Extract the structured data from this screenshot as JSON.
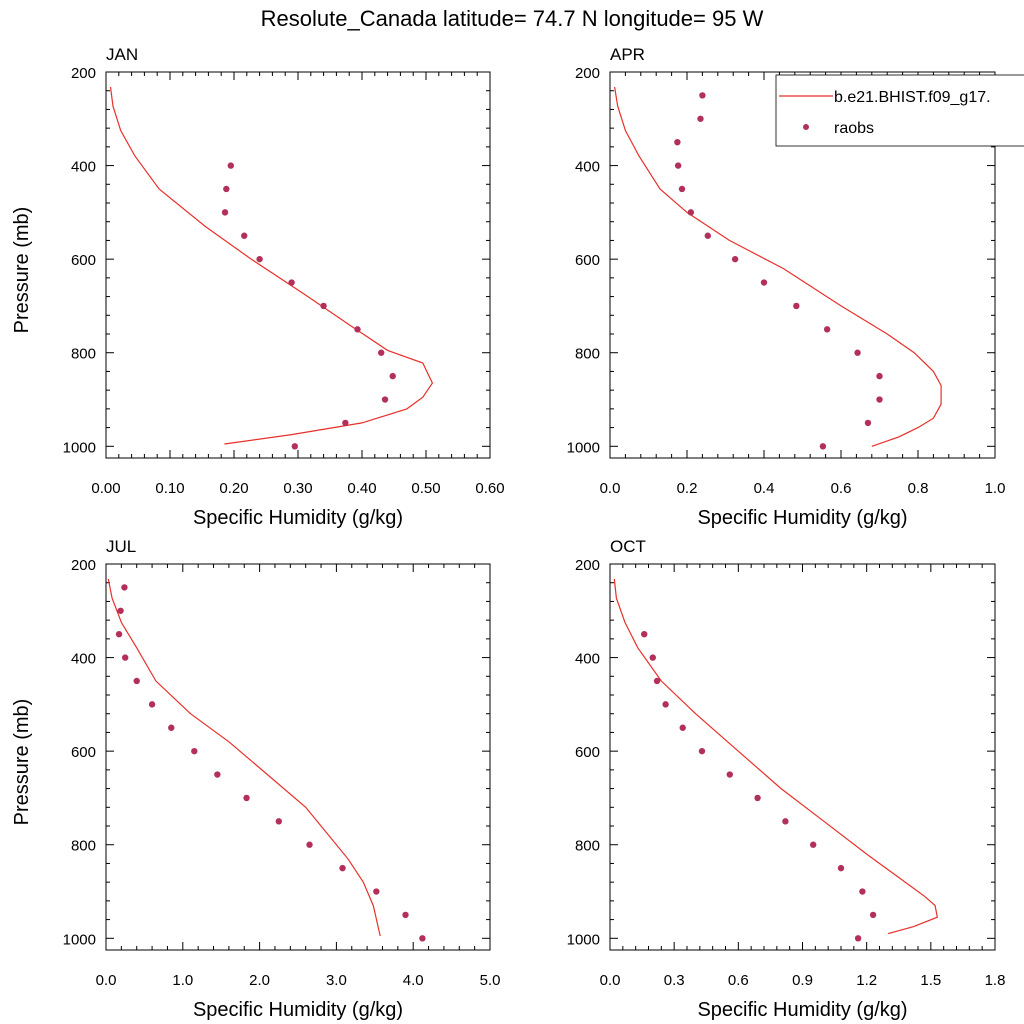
{
  "figure": {
    "title": "Resolute_Canada  latitude= 74.7 N longitude= 95 W"
  },
  "legend": {
    "entries": [
      {
        "label": "b.e21.BHIST.f09_g17.",
        "kind": "line",
        "color": "#e8302a"
      },
      {
        "label": "raobs",
        "kind": "marker",
        "color": "#b2305a"
      }
    ]
  },
  "chart_data": [
    {
      "type": "line+scatter",
      "title": "JAN",
      "xlabel": "Specific Humidity (g/kg)",
      "ylabel": "Pressure (mb)",
      "xlim": [
        0,
        0.6
      ],
      "xticks": [
        0,
        0.1,
        0.2,
        0.3,
        0.4,
        0.5,
        0.6
      ],
      "xtick_labels": [
        "0.00",
        "0.10",
        "0.20",
        "0.30",
        "0.40",
        "0.50",
        "0.60"
      ],
      "ylim": [
        200,
        1025
      ],
      "yticks": [
        200,
        400,
        600,
        800,
        1000
      ],
      "ytick_labels": [
        "200",
        "400",
        "600",
        "800",
        "1000"
      ],
      "yinverted": true,
      "series": [
        {
          "name": "b.e21.BHIST.f09_g17.",
          "kind": "line",
          "x": [
            0.007,
            0.011,
            0.023,
            0.045,
            0.083,
            0.155,
            0.227,
            0.31,
            0.38,
            0.44,
            0.495,
            0.51,
            0.495,
            0.47,
            0.4,
            0.29,
            0.185
          ],
          "y": [
            232,
            273,
            325,
            379,
            450,
            530,
            600,
            675,
            740,
            795,
            822,
            865,
            895,
            920,
            950,
            975,
            995
          ]
        },
        {
          "name": "raobs",
          "kind": "scatter",
          "x": [
            0.195,
            0.188,
            0.186,
            0.216,
            0.24,
            0.29,
            0.34,
            0.393,
            0.43,
            0.448,
            0.436,
            0.374,
            0.295
          ],
          "y": [
            400,
            450,
            500,
            550,
            600,
            650,
            700,
            750,
            800,
            850,
            900,
            950,
            1000
          ]
        }
      ]
    },
    {
      "type": "line+scatter",
      "title": "APR",
      "xlabel": "Specific Humidity (g/kg)",
      "ylabel": "",
      "xlim": [
        0,
        1.0
      ],
      "xticks": [
        0,
        0.2,
        0.4,
        0.6,
        0.8,
        1.0
      ],
      "xtick_labels": [
        "0.0",
        "0.2",
        "0.4",
        "0.6",
        "0.8",
        "1.0"
      ],
      "ylim": [
        200,
        1025
      ],
      "yticks": [
        200,
        400,
        600,
        800,
        1000
      ],
      "ytick_labels": [
        "200",
        "400",
        "600",
        "800",
        "1000"
      ],
      "yinverted": true,
      "series": [
        {
          "name": "b.e21.BHIST.f09_g17.",
          "kind": "line",
          "x": [
            0.012,
            0.02,
            0.04,
            0.075,
            0.13,
            0.2,
            0.31,
            0.45,
            0.6,
            0.72,
            0.79,
            0.84,
            0.86,
            0.86,
            0.84,
            0.8,
            0.75,
            0.68
          ],
          "y": [
            232,
            273,
            325,
            379,
            450,
            500,
            560,
            620,
            700,
            760,
            800,
            840,
            870,
            910,
            940,
            960,
            980,
            1000
          ]
        },
        {
          "name": "raobs",
          "kind": "scatter",
          "x": [
            0.24,
            0.235,
            0.175,
            0.177,
            0.187,
            0.21,
            0.254,
            0.325,
            0.4,
            0.484,
            0.564,
            0.643,
            0.7,
            0.7,
            0.67,
            0.553
          ],
          "y": [
            250,
            300,
            350,
            400,
            450,
            500,
            550,
            600,
            650,
            700,
            750,
            800,
            850,
            900,
            950,
            1000
          ]
        }
      ]
    },
    {
      "type": "line+scatter",
      "title": "JUL",
      "xlabel": "Specific Humidity (g/kg)",
      "ylabel": "Pressure (mb)",
      "xlim": [
        0,
        5.0
      ],
      "xticks": [
        0,
        1,
        2,
        3,
        4,
        5
      ],
      "xtick_labels": [
        "0.0",
        "1.0",
        "2.0",
        "3.0",
        "4.0",
        "5.0"
      ],
      "ylim": [
        200,
        1025
      ],
      "yticks": [
        200,
        400,
        600,
        800,
        1000
      ],
      "ytick_labels": [
        "200",
        "400",
        "600",
        "800",
        "1000"
      ],
      "yinverted": true,
      "series": [
        {
          "name": "b.e21.BHIST.f09_g17.",
          "kind": "line",
          "x": [
            0.03,
            0.08,
            0.2,
            0.4,
            0.65,
            1.1,
            1.6,
            2.1,
            2.6,
            2.9,
            3.15,
            3.35,
            3.48,
            3.57
          ],
          "y": [
            232,
            273,
            325,
            379,
            450,
            520,
            580,
            650,
            720,
            780,
            830,
            880,
            930,
            995
          ]
        },
        {
          "name": "raobs",
          "kind": "scatter",
          "x": [
            0.24,
            0.19,
            0.17,
            0.25,
            0.4,
            0.6,
            0.85,
            1.15,
            1.45,
            1.83,
            2.25,
            2.65,
            3.08,
            3.52,
            3.9,
            4.12
          ],
          "y": [
            250,
            300,
            350,
            400,
            450,
            500,
            550,
            600,
            650,
            700,
            750,
            800,
            850,
            900,
            950,
            1000
          ]
        }
      ]
    },
    {
      "type": "line+scatter",
      "title": "OCT",
      "xlabel": "Specific Humidity (g/kg)",
      "ylabel": "",
      "xlim": [
        0,
        1.8
      ],
      "xticks": [
        0,
        0.3,
        0.6,
        0.9,
        1.2,
        1.5,
        1.8
      ],
      "xtick_labels": [
        "0.0",
        "0.3",
        "0.6",
        "0.9",
        "1.2",
        "1.5",
        "1.8"
      ],
      "ylim": [
        200,
        1025
      ],
      "yticks": [
        200,
        400,
        600,
        800,
        1000
      ],
      "ytick_labels": [
        "200",
        "400",
        "600",
        "800",
        "1000"
      ],
      "yinverted": true,
      "series": [
        {
          "name": "b.e21.BHIST.f09_g17.",
          "kind": "line",
          "x": [
            0.02,
            0.03,
            0.07,
            0.13,
            0.24,
            0.4,
            0.6,
            0.8,
            1.0,
            1.2,
            1.35,
            1.47,
            1.52,
            1.53,
            1.42,
            1.3
          ],
          "y": [
            232,
            273,
            325,
            379,
            450,
            520,
            600,
            680,
            750,
            820,
            870,
            910,
            930,
            955,
            975,
            990
          ]
        },
        {
          "name": "raobs",
          "kind": "scatter",
          "x": [
            0.16,
            0.2,
            0.22,
            0.26,
            0.34,
            0.43,
            0.56,
            0.69,
            0.82,
            0.95,
            1.08,
            1.18,
            1.23,
            1.16
          ],
          "y": [
            350,
            400,
            450,
            500,
            550,
            600,
            650,
            700,
            750,
            800,
            850,
            900,
            950,
            1000
          ]
        }
      ]
    }
  ]
}
